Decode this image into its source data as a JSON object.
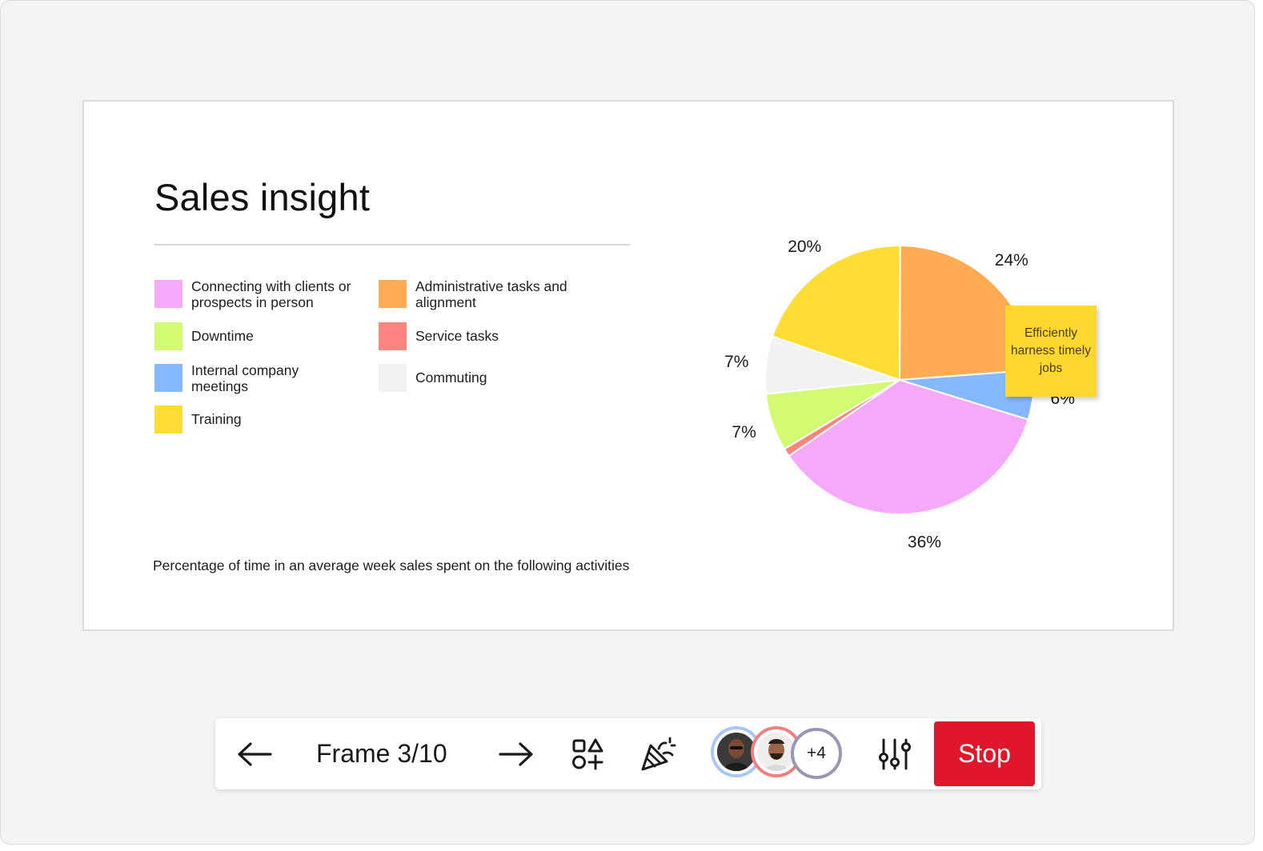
{
  "slide": {
    "title": "Sales insight",
    "caption": "Percentage of time in an average week sales spent on the following activities",
    "sticky_note": "Efficiently harness timely jobs",
    "legend": [
      {
        "label": "Connecting with clients or prospects in person",
        "color": "#f6a9fb"
      },
      {
        "label": "Administrative tasks and alignment",
        "color": "#ffab52"
      },
      {
        "label": "Downtime",
        "color": "#d2fa72"
      },
      {
        "label": "Service tasks",
        "color": "#fd847f"
      },
      {
        "label": "Internal company meetings",
        "color": "#86b8ff"
      },
      {
        "label": "Commuting",
        "color": "#f1f2f3"
      },
      {
        "label": "Training",
        "color": "#ffdd33"
      }
    ]
  },
  "chart_data": {
    "type": "pie",
    "slices": [
      {
        "name": "Administrative tasks and alignment",
        "value": 24,
        "label": "24%",
        "color": "#ffab52"
      },
      {
        "name": "Internal company meetings",
        "value": 6,
        "label": "6%",
        "color": "#86b8ff"
      },
      {
        "name": "Connecting with clients or prospects in person",
        "value": 36,
        "label": "36%",
        "color": "#f6a9fb"
      },
      {
        "name": "Service tasks",
        "value": 1,
        "label": "",
        "color": "#fd847f"
      },
      {
        "name": "Downtime",
        "value": 7,
        "label": "7%",
        "color": "#d2fa72"
      },
      {
        "name": "Commuting",
        "value": 7,
        "label": "7%",
        "color": "#f1f2f3"
      },
      {
        "name": "Training",
        "value": 20,
        "label": "20%",
        "color": "#ffdd33"
      }
    ]
  },
  "toolbar": {
    "frame_label": "Frame 3/10",
    "extra_participants": "+4",
    "stop_label": "Stop",
    "icons": [
      "arrow-left-icon",
      "arrow-right-icon",
      "shapes-icon",
      "party-popper-icon",
      "sliders-icon"
    ]
  }
}
